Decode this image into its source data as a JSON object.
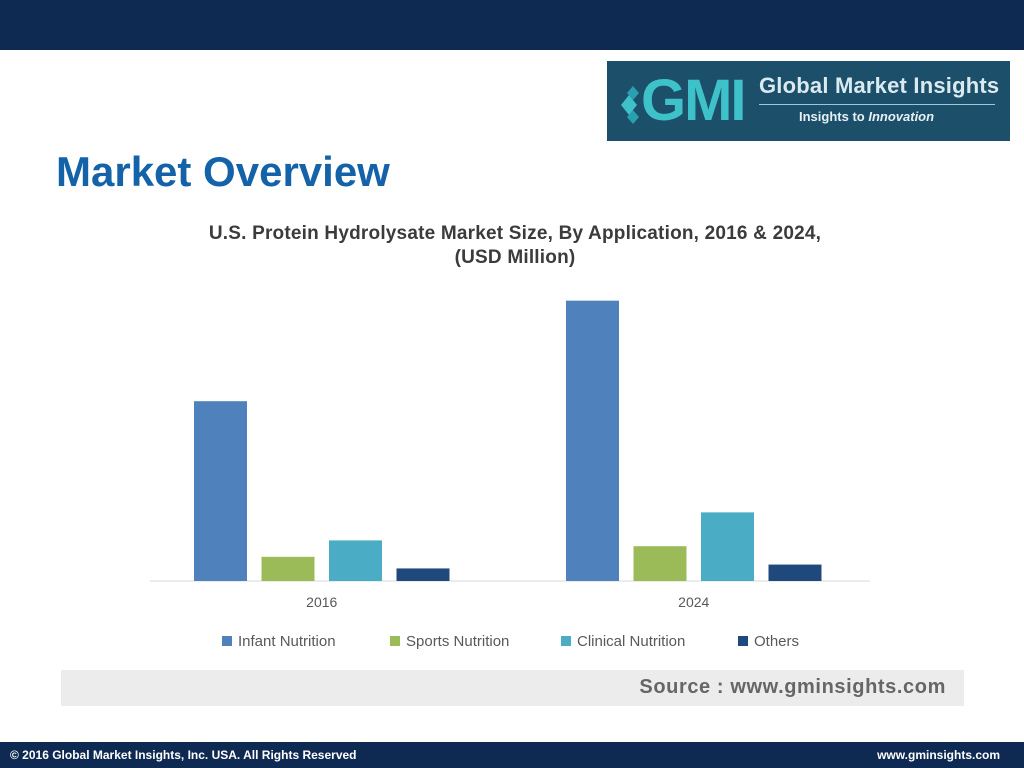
{
  "header": {
    "page_title": "Market Overview"
  },
  "logo": {
    "mark": "GMI",
    "brand": "Global Market Insights",
    "tagline_prefix": "Insights to ",
    "tagline_emphasis": "Innovation"
  },
  "chart_data": {
    "type": "bar",
    "title": "U.S. Protein Hydrolysate Market Size, By Application, 2016 & 2024, (USD Million)",
    "title_line1": "U.S. Protein Hydrolysate Market Size, By Application, 2016 & 2024,",
    "title_line2": "(USD Million)",
    "categories": [
      "2016",
      "2024"
    ],
    "series": [
      {
        "name": "Infant Nutrition",
        "color": "#4f81bd",
        "values": [
          186,
          290
        ]
      },
      {
        "name": "Sports Nutrition",
        "color": "#9bbb59",
        "values": [
          25,
          36
        ]
      },
      {
        "name": "Clinical Nutrition",
        "color": "#4bacc6",
        "values": [
          42,
          71
        ]
      },
      {
        "name": "Others",
        "color": "#1f497d",
        "values": [
          13,
          17
        ]
      }
    ],
    "ylim": [
      0,
      300
    ],
    "grid": false,
    "legend": "bottom",
    "xlabel": "",
    "ylabel": ""
  },
  "source": {
    "text": "Source : www.gminsights.com"
  },
  "footer": {
    "copyright": "© 2016 Global Market Insights, Inc. USA.  All Rights Reserved",
    "website": "www.gminsights.com"
  }
}
